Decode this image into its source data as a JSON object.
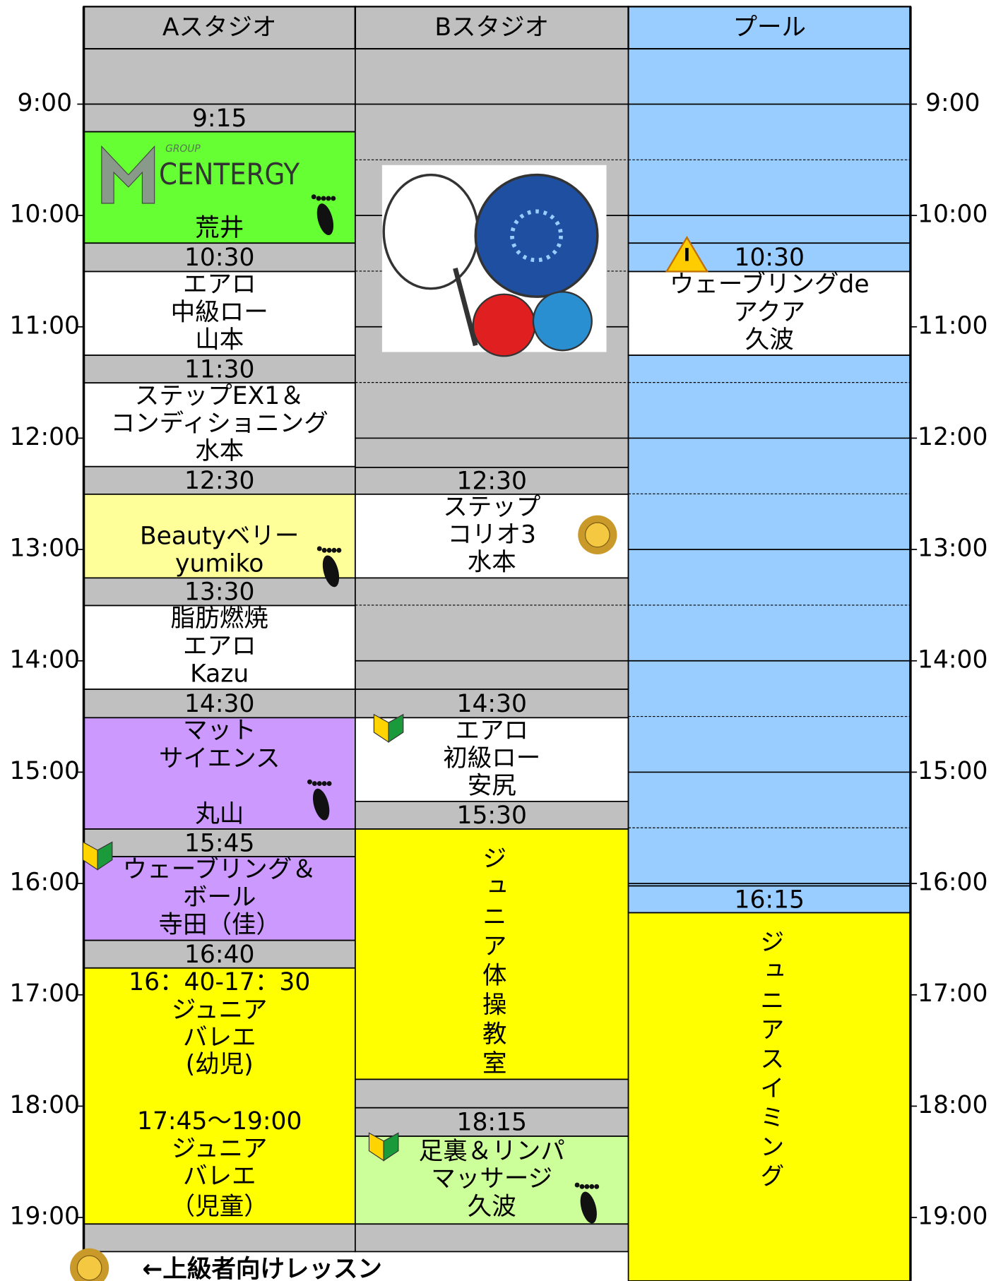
{
  "times": [
    "9:00",
    "10:00",
    "11:00",
    "12:00",
    "13:00",
    "14:00",
    "15:00",
    "16:00",
    "17:00",
    "18:00",
    "19:00"
  ],
  "columns": [
    {
      "header": "Aスタジオ",
      "blocks": [
        {
          "text": "9:15"
        },
        {
          "logo": [
            "GROUP",
            "CENTERGY"
          ],
          "lines": [
            "荒井"
          ]
        },
        {
          "text": "10:30"
        },
        {
          "lines": [
            "エアロ",
            "中級ロー",
            "山本"
          ]
        },
        {
          "text": "11:30"
        },
        {
          "lines": [
            "ステップEX1＆",
            "コンディショニング",
            "水本"
          ]
        },
        {
          "text": "12:30"
        },
        {
          "lines": [
            "Beautyベリー",
            "yumiko"
          ]
        },
        {
          "text": "13:30"
        },
        {
          "lines": [
            "脂肪燃焼",
            "エアロ",
            "Kazu"
          ]
        },
        {
          "text": "14:30"
        },
        {
          "lines": [
            "マット",
            "サイエンス",
            "丸山"
          ]
        },
        {
          "text": "15:45"
        },
        {
          "lines": [
            "ウェーブリング＆",
            "ボール",
            "寺田（佳）"
          ]
        },
        {
          "text": "16:40"
        },
        {
          "lines": [
            "16：40-17：30",
            "ジュニア",
            "バレエ",
            "(幼児)",
            "17:45～19:00",
            "ジュニア",
            "バレエ",
            "（児童）"
          ]
        }
      ]
    },
    {
      "header": "Bスタジオ",
      "blocks": [
        {
          "text": "12:30"
        },
        {
          "lines": [
            "ステップ",
            "コリオ3",
            "水本"
          ]
        },
        {
          "text": "14:30"
        },
        {
          "lines": [
            "エアロ",
            "初級ロー",
            "安尻"
          ]
        },
        {
          "text": "15:30"
        },
        {
          "vertical": "ジュニア体操教室"
        },
        {
          "text": "18:15"
        },
        {
          "lines": [
            "足裏＆リンパ",
            "マッサージ",
            "久波"
          ]
        }
      ]
    },
    {
      "header": "プール",
      "blocks": [
        {
          "text": "10:30"
        },
        {
          "lines": [
            "ウェーブリングde",
            "アクア",
            "久波"
          ]
        },
        {
          "text": "16:15"
        },
        {
          "vertical": "ジュニアスイミング"
        }
      ]
    }
  ],
  "footer_note": "←上級者向けレッスン"
}
